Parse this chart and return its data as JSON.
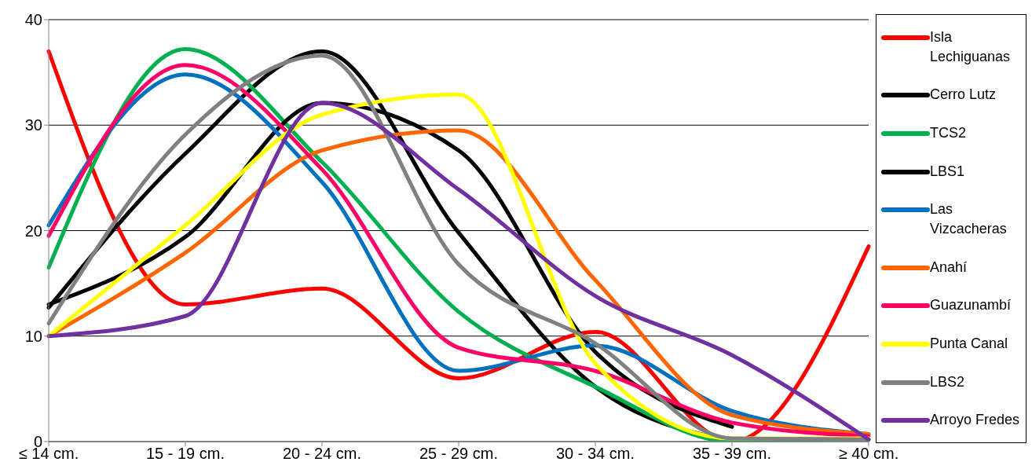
{
  "chart_data": {
    "type": "line",
    "categories": [
      "≤ 14 cm.",
      "15 - 19 cm.",
      "20 - 24 cm.",
      "25 - 29 cm.",
      "30 - 34 cm.",
      "35 - 39 cm.",
      "≥ 40 cm."
    ],
    "series": [
      {
        "name": "Isla Lechiguanas",
        "color": "#ff0000",
        "values": [
          37,
          13,
          14.5,
          6,
          10.4,
          0,
          18.5
        ]
      },
      {
        "name": "Cerro Lutz",
        "color": "#000000",
        "values": [
          12.7,
          27.3,
          37,
          19.8,
          5.2,
          0,
          null
        ]
      },
      {
        "name": "TCS2",
        "color": "#00b050",
        "values": [
          16.5,
          37.2,
          26.5,
          12.3,
          5.2,
          0,
          0.2
        ]
      },
      {
        "name": "LBS1",
        "color": "#000000",
        "values": [
          13,
          19.4,
          32.1,
          27.6,
          8.5,
          1.4,
          null
        ]
      },
      {
        "name": "Las Vizcacheras",
        "color": "#0070c0",
        "values": [
          20.5,
          34.8,
          24.6,
          6.7,
          9.1,
          2.9,
          0.7
        ]
      },
      {
        "name": "Anahí",
        "color": "#ff6600",
        "values": [
          10,
          17.9,
          27.6,
          29.5,
          15.3,
          2.5,
          0.7
        ]
      },
      {
        "name": "Guazunambí",
        "color": "#ff0066",
        "values": [
          19.5,
          35.7,
          25.8,
          8.9,
          6.7,
          1.8,
          0.5
        ]
      },
      {
        "name": "Punta Canal",
        "color": "#ffff00",
        "values": [
          10,
          20.5,
          31,
          32.9,
          7.4,
          0.3,
          0.3
        ]
      },
      {
        "name": "LBS2",
        "color": "#808080",
        "values": [
          11.2,
          29.1,
          36.6,
          16.8,
          9.3,
          0.3,
          0.2
        ]
      },
      {
        "name": "Arroyo Fredes",
        "color": "#7030a0",
        "values": [
          10,
          11.9,
          32.1,
          23.9,
          13.8,
          8.2,
          0.2
        ]
      }
    ],
    "ylim": [
      0,
      40
    ],
    "yticks": [
      0,
      10,
      20,
      30,
      40
    ],
    "grid": "y",
    "legend": "right",
    "marker": "none",
    "line_style": "solid"
  }
}
